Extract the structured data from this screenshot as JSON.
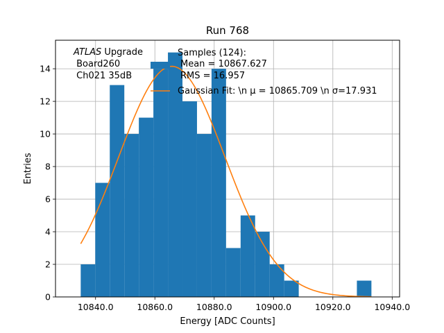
{
  "chart_data": {
    "type": "bar",
    "title": "Run 768",
    "xlabel": "Energy [ADC Counts]",
    "ylabel": "Entries",
    "xlim": [
      10826.5,
      10942.5
    ],
    "ylim": [
      0,
      15.75
    ],
    "grid": true,
    "x_ticks": [
      10840,
      10860,
      10880,
      10900,
      10920,
      10940
    ],
    "x_tick_labels": [
      "10840.0",
      "10860.0",
      "10880.0",
      "10900.0",
      "10920.0",
      "10940.0"
    ],
    "y_ticks": [
      0,
      2,
      4,
      6,
      8,
      10,
      12,
      14
    ],
    "y_tick_labels": [
      "0",
      "2",
      "4",
      "6",
      "8",
      "10",
      "12",
      "14"
    ],
    "bin_width": 4.9,
    "bin_edges_start": 10835.0,
    "bins": [
      {
        "x0": 10835.0,
        "x1": 10839.9,
        "count": 2
      },
      {
        "x0": 10839.9,
        "x1": 10844.8,
        "count": 7
      },
      {
        "x0": 10844.8,
        "x1": 10849.7,
        "count": 13
      },
      {
        "x0": 10849.7,
        "x1": 10854.6,
        "count": 10
      },
      {
        "x0": 10854.6,
        "x1": 10859.5,
        "count": 11
      },
      {
        "x0": 10859.5,
        "x1": 10864.4,
        "count": 14
      },
      {
        "x0": 10864.4,
        "x1": 10869.3,
        "count": 15
      },
      {
        "x0": 10869.3,
        "x1": 10874.2,
        "count": 12
      },
      {
        "x0": 10874.2,
        "x1": 10879.1,
        "count": 10
      },
      {
        "x0": 10879.1,
        "x1": 10884.0,
        "count": 14
      },
      {
        "x0": 10884.0,
        "x1": 10888.9,
        "count": 3
      },
      {
        "x0": 10888.9,
        "x1": 10893.8,
        "count": 5
      },
      {
        "x0": 10893.8,
        "x1": 10898.7,
        "count": 4
      },
      {
        "x0": 10898.7,
        "x1": 10903.6,
        "count": 2
      },
      {
        "x0": 10903.6,
        "x1": 10908.5,
        "count": 1
      },
      {
        "x0": 10908.5,
        "x1": 10913.4,
        "count": 0
      },
      {
        "x0": 10913.4,
        "x1": 10918.3,
        "count": 0
      },
      {
        "x0": 10918.3,
        "x1": 10923.2,
        "count": 0
      },
      {
        "x0": 10923.2,
        "x1": 10928.1,
        "count": 0
      },
      {
        "x0": 10928.1,
        "x1": 10933.0,
        "count": 1
      }
    ],
    "fit": {
      "type": "gaussian",
      "mu": 10865.709,
      "sigma": 17.931,
      "amplitude": 14.15,
      "x_range": [
        10835.0,
        10933.0
      ]
    },
    "colors": {
      "bars": "#1f77b4",
      "fit": "#ff7f0e",
      "grid": "#b0b0b0"
    },
    "legend": {
      "placement": "top-right",
      "entries": [
        {
          "label": "Samples (124):",
          "kind": "bar"
        },
        {
          "label": "Mean = 10867.627",
          "kind": "text"
        },
        {
          "label": "RMS = 16.957",
          "kind": "text"
        },
        {
          "label": "Gaussian Fit: \\n μ = 10865.709 \\n σ=17.931",
          "kind": "line"
        }
      ]
    },
    "annotation": {
      "line1_italic": "ATLAS",
      "line1_rest": " Upgrade",
      "line2": " Board260",
      "line3": " Ch021 35dB"
    }
  }
}
